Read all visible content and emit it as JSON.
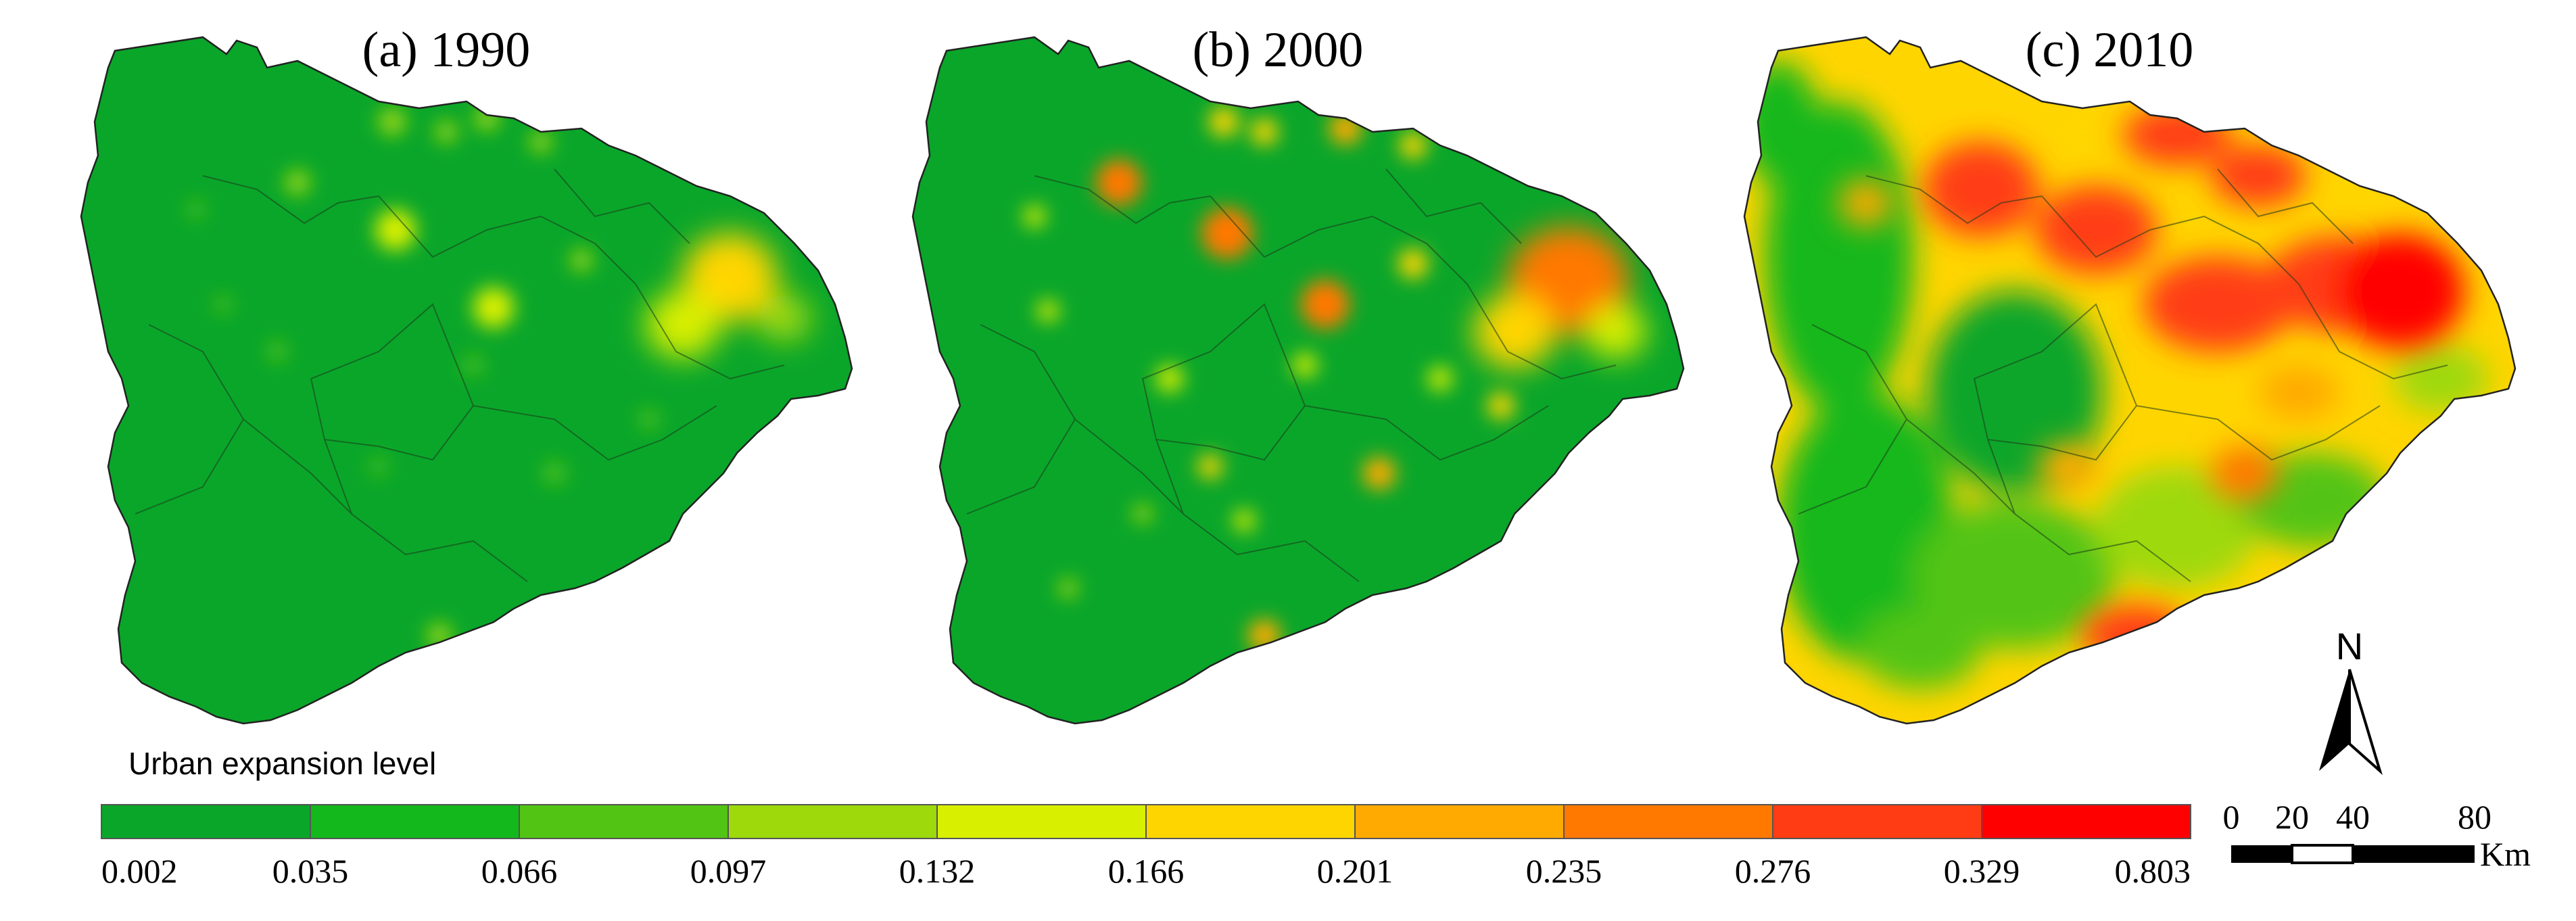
{
  "panels": [
    {
      "id": "a",
      "title": "(a) 1990"
    },
    {
      "id": "b",
      "title": "(b) 2000"
    },
    {
      "id": "c",
      "title": "(c) 2010"
    }
  ],
  "legend": {
    "title": "Urban expansion level",
    "colors": [
      "#0aa62a",
      "#12b81c",
      "#52c414",
      "#9ed90c",
      "#d8ef00",
      "#ffd500",
      "#ffaa00",
      "#ff7800",
      "#ff3c14",
      "#ff0000"
    ],
    "ticks": [
      "0.002",
      "0.035",
      "0.066",
      "0.097",
      "0.132",
      "0.166",
      "0.201",
      "0.235",
      "0.276",
      "0.329",
      "0.803"
    ]
  },
  "scale_bar": {
    "labels": [
      "0",
      "20",
      "40",
      "80"
    ],
    "unit": "Km"
  },
  "north_arrow": {
    "label": "N"
  }
}
